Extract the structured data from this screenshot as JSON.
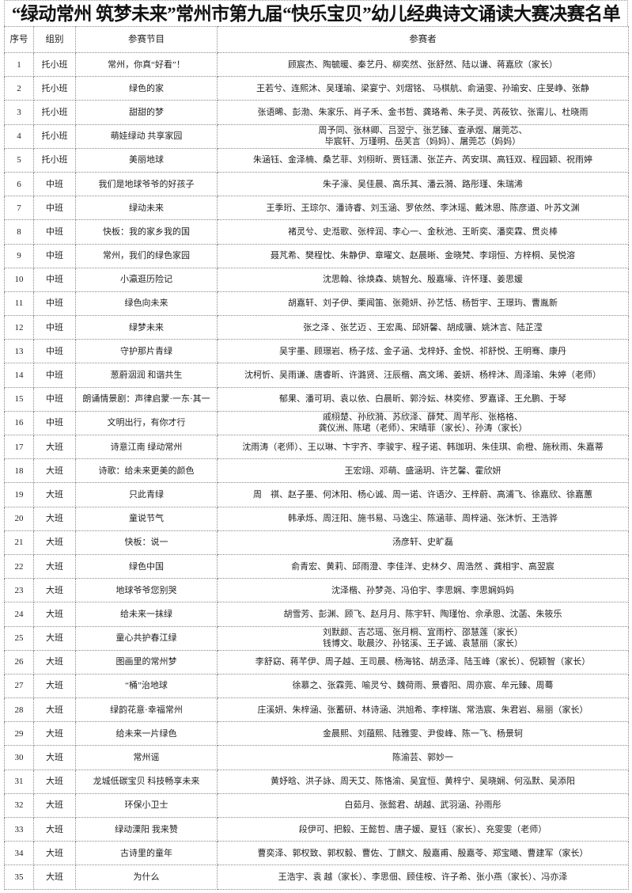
{
  "title": "“绿动常州 筑梦未来”常州市第九届“快乐宝贝”幼儿经典诗文诵读大赛决赛名单",
  "headers": {
    "no": "序号",
    "group": "组别",
    "program": "参赛节目",
    "participants": "参赛者"
  },
  "rows": [
    {
      "no": "1",
      "group": "托小班",
      "program": "常州，你真“好看”！",
      "participants": [
        "顾宸杰、陶毓暖、秦艺丹、柳奕然、张舒然、陆以谦、蒋嘉欣（家长）"
      ]
    },
    {
      "no": "2",
      "group": "托小班",
      "program": "绿色的家",
      "participants": [
        "王若兮、连熙沐、吴瑾瑜、梁宴宁、刘熠铭、 马棋航、俞涵雯、孙瑜安、庄旻峥、张静"
      ]
    },
    {
      "no": "3",
      "group": "托小班",
      "program": "甜甜的梦",
      "participants": [
        "张语晞、彭渤、朱家乐、肖子禾、金书哲、龚珞希、朱子灵、芮莜钦、张甯儿、杜晓雨"
      ]
    },
    {
      "no": "4",
      "group": "托小班",
      "program": "萌娃绿动 共享家园",
      "participants": [
        "周予同、张林卿、吕翌宁、张艺臻、查承煜、屠莞芯、",
        "毕宸轩、万瑾明、岳芙言（妈妈）、屠莞芯（妈妈）"
      ]
    },
    {
      "no": "5",
      "group": "托小班",
      "program": "美丽地球",
      "participants": [
        "朱涵钰、金泽楠、桑艺菲、刘栩昕、贾钰潇、张芷卉、芮安琪、高钰双、程园颖、祝雨婷"
      ]
    },
    {
      "no": "6",
      "group": "中班",
      "program": "我们是地球爷爷的好孩子",
      "participants": [
        "朱子濠、吴佳晨、高乐其、潘云漪、路彤瑾、朱瑞浠"
      ]
    },
    {
      "no": "7",
      "group": "中班",
      "program": "绿动未来",
      "participants": [
        "王季珩、王琮尔、潘诗睿、刘玉涵、罗依然、李沐瑶、戴沐恩、陈彦道、叶苏文渊"
      ]
    },
    {
      "no": "8",
      "group": "中班",
      "program": "快板：我的家乡我的国",
      "participants": [
        "褚灵兮、史湉歌、张梓润、李心一、金秋池、王昕奕、潘奕霖、贯炎棒"
      ]
    },
    {
      "no": "9",
      "group": "中班",
      "program": "常州，我们的绿色家园",
      "participants": [
        "聂芃希、樊程忱、朱静伊、章曜文、赵晨晰、金晓梵、李翊恒、方梓桐、吴悦溶"
      ]
    },
    {
      "no": "10",
      "group": "中班",
      "program": "小瀛逛历险记",
      "participants": [
        "沈思翰、徐焕森、姚智允、殷嘉壕、许怀瑾、姜思媛"
      ]
    },
    {
      "no": "11",
      "group": "中班",
      "program": "绿色向未来",
      "participants": [
        "胡嘉轩、刘子伊、栗闻笛、张菀妍、孙艺恬、杨哲宇、王璟玙、曹胤新"
      ]
    },
    {
      "no": "12",
      "group": "中班",
      "program": "绿梦未来",
      "participants": [
        "张之泽 、张艺迈 、王宏禹、邱妍馨、胡成骥、姚沐言、陆芷滢"
      ]
    },
    {
      "no": "13",
      "group": "中班",
      "program": "守护那片青绿",
      "participants": [
        "吴宇墨、顾璟岩、杨子炫、金子涵、戈梓妤、金悦、祁舒悦、王明骞、康丹"
      ]
    },
    {
      "no": "14",
      "group": "中班",
      "program": "葱蔚洇润 和谐共生",
      "participants": [
        "沈柯忻、吴雨谦、唐睿昕、许潞贤、汪辰楷、高文琋、姜妍、杨梓沐、周泽瑜、朱婷（老师）"
      ]
    },
    {
      "no": "15",
      "group": "中班",
      "program": "朗诵情景剧：声律启蒙·一东·其一",
      "participants": [
        "郁果、潘可玥、袁以依、白晨昕、郭泠妘、林奕修、罗嘉译、王允鹏、于琴"
      ]
    },
    {
      "no": "16",
      "group": "中班",
      "program": "文明出行，有你才行",
      "participants": [
        "戚栩楚、孙欣漪、苏欣泽、薛梵、周芊彤、张格格、",
        "龚仪洲、陈珺（老师）、宋晴菲（家长）、孙涛（家长）"
      ]
    },
    {
      "no": "17",
      "group": "大班",
      "program": "诗意江南 绿动常州",
      "participants": [
        "沈雨涛（老师）、王以琳、卞宇齐、李骏宇、程子诺、韩珈玥、朱佳琪、俞橙、施秋雨、朱嘉蒂"
      ]
    },
    {
      "no": "18",
      "group": "大班",
      "program": "诗歌：给未来更美的颜色",
      "participants": [
        "王宏翊、邓萌、盛涵玥、许艺馨、霍欣妍"
      ]
    },
    {
      "no": "19",
      "group": "大班",
      "program": "只此青绿",
      "participants": [
        "周　祺、赵子墨、何沐阳、杨心诚、周一诺、许语汐、王梓蔚、高浦飞、徐嘉欣、徐嘉蕙"
      ]
    },
    {
      "no": "20",
      "group": "大班",
      "program": "童说节气",
      "participants": [
        "韩承烁、周汪阳、施书易、马逸尘、陈涵菲、周梓涵、张沐忻、王浩骅"
      ]
    },
    {
      "no": "21",
      "group": "大班",
      "program": "快板：说一",
      "participants": [
        "汤彦轩、史旷磊"
      ]
    },
    {
      "no": "22",
      "group": "大班",
      "program": "绿色中国",
      "participants": [
        "俞青宏、黄莉、邱雨澄、李佳洋、史林夕、周浩然 、龚相宇、高翌宸"
      ]
    },
    {
      "no": "23",
      "group": "大班",
      "program": "地球爷爷您别哭",
      "participants": [
        "沈泽楷、孙梦尧、冯伯宇、李思娴、李思娴妈妈"
      ]
    },
    {
      "no": "24",
      "group": "大班",
      "program": "给未来一抹绿",
      "participants": [
        "胡雪芳、彭渊、顾飞、赵月月、陈宇轩、陶瑾怡、佘承恩、沈菡、朱筱乐"
      ]
    },
    {
      "no": "25",
      "group": "大班",
      "program": "童心共护春江绿",
      "participants": [
        "刘默颜、吉芯瑶、张月桐、宜雨柠、邵慧莲（家长）",
        "钱博文、耿晨汐、孙铭溪、王子诚、袁慧丽（家长）"
      ]
    },
    {
      "no": "26",
      "group": "大班",
      "program": "图画里的常州梦",
      "participants": [
        "李舒窈、蒋芊伊、周子越、王司晨、杨海铭、胡丞泽、陆玉峰（家长）、倪颖智（家长）"
      ]
    },
    {
      "no": "27",
      "group": "大班",
      "program": "“桶”治地球",
      "participants": [
        "徐慕之、张霖莞、喻灵兮、魏荷雨、景睿阳、周亦宸、牟元臻、周蓦"
      ]
    },
    {
      "no": "28",
      "group": "大班",
      "program": "绿韵花意·幸福常州",
      "participants": [
        "庄溪妍、朱梓涵、张蓄研、林诗涵、洪旭希、李梓瑞、常浩宸、朱君岩、易丽（家长）"
      ]
    },
    {
      "no": "29",
      "group": "大班",
      "program": "给未来一片绿色",
      "participants": [
        "金晨熙、刘蕴熙、陆雅雯、尹俊峰、陈一飞、杨景轲"
      ]
    },
    {
      "no": "30",
      "group": "大班",
      "program": "常州谣",
      "participants": [
        "陈渝芸、郭妙一"
      ]
    },
    {
      "no": "31",
      "group": "大班",
      "program": "龙城低碳宝贝 科技畅享未来",
      "participants": [
        "黄妤晗、洪子詠、周天艾、陈恪渝、吴宜恒、黄梓宁、吴晓娴、何泓默、吴添阳"
      ]
    },
    {
      "no": "32",
      "group": "大班",
      "program": "环保小卫士",
      "participants": [
        "白茹月、张懿君、胡越、武羽涵、孙雨彤"
      ]
    },
    {
      "no": "33",
      "group": "大班",
      "program": "绿动溧阳 我来赞",
      "participants": [
        "段伊可、把毅、王懿哲、唐子媛、夏钰（家长）、充雯雯（老师）"
      ]
    },
    {
      "no": "34",
      "group": "大班",
      "program": "古诗里的童年",
      "participants": [
        "曹奕泽、郭权致、郭权毅、曹佐、丁麒文、殷嘉甫、殷嘉苓、郑宝曦、曹建军（家长）"
      ]
    },
    {
      "no": "35",
      "group": "大班",
      "program": "为什么",
      "participants": [
        "王浩宇、袁 越（家长）、李思佃、顾佳桉、许子希、张小燕（家长）、冯亦泽"
      ]
    }
  ]
}
